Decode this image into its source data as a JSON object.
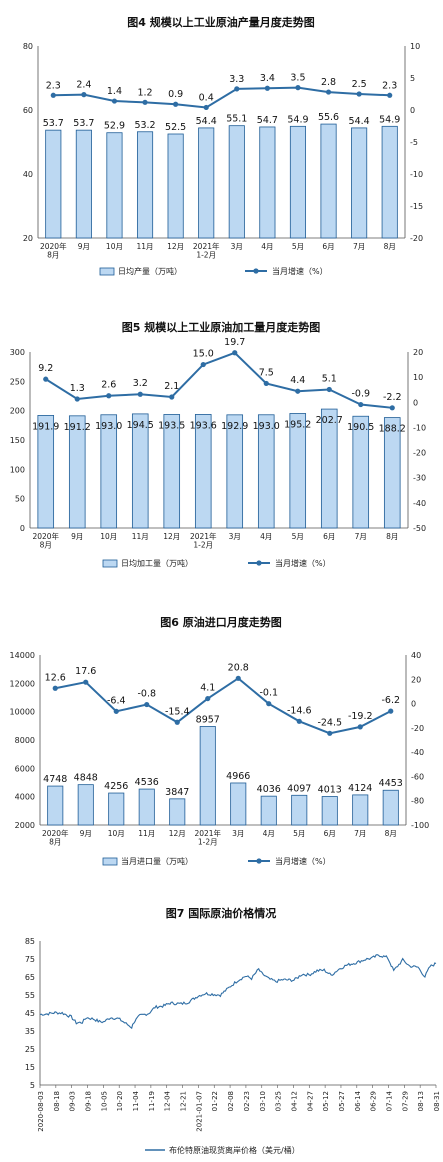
{
  "charts": [
    {
      "title": "图4  规模以上工业原油产量月度走势图",
      "categories": [
        "2020年\n8月",
        "9月",
        "10月",
        "11月",
        "12月",
        "2021年\n1-2月",
        "3月",
        "4月",
        "5月",
        "6月",
        "7月",
        "8月"
      ],
      "bar_legend": "日均产量（万吨）",
      "line_legend": "当月增速（%）"
    },
    {
      "title": "图5  规模以上工业原油加工量月度走势图",
      "categories": [
        "2020年\n8月",
        "9月",
        "10月",
        "11月",
        "12月",
        "2021年\n1-2月",
        "3月",
        "4月",
        "5月",
        "6月",
        "7月",
        "8月"
      ],
      "bar_legend": "日均加工量（万吨）",
      "line_legend": "当月增速（%）"
    },
    {
      "title": "图6  原油进口月度走势图",
      "categories": [
        "2020年\n8月",
        "9月",
        "10月",
        "11月",
        "12月",
        "2021年\n1-2月",
        "3月",
        "4月",
        "5月",
        "6月",
        "7月",
        "8月"
      ],
      "bar_legend": "当月进口量（万吨）",
      "line_legend": "当月增速（%）"
    },
    {
      "title": "图7  国际原油价格情况",
      "legend": "布伦特原油现货离岸价格（美元/桶）"
    }
  ],
  "colors": {
    "bar_fill": "#bcd8f2",
    "bar_stroke": "#1f5d96",
    "line": "#2e6da4",
    "axis_text": "#222222",
    "price_line": "#2e6da4"
  },
  "chart_data": [
    {
      "type": "bar",
      "categories": [
        "2020年\n8月",
        "9月",
        "10月",
        "11月",
        "12月",
        "2021年\n1-2月",
        "3月",
        "4月",
        "5月",
        "6月",
        "7月",
        "8月"
      ],
      "series": [
        {
          "name": "日均产量（万吨）",
          "type": "bar",
          "axis": "left",
          "values": [
            53.7,
            53.7,
            52.9,
            53.2,
            52.5,
            54.4,
            55.1,
            54.7,
            54.9,
            55.6,
            54.4,
            54.9
          ]
        },
        {
          "name": "当月增速（%）",
          "type": "line",
          "axis": "right",
          "values": [
            2.3,
            2.4,
            1.4,
            1.2,
            0.9,
            0.4,
            3.3,
            3.4,
            3.5,
            2.8,
            2.5,
            2.3
          ]
        }
      ],
      "left_axis": {
        "min": 20,
        "max": 80,
        "ticks": [
          20,
          40,
          60,
          80
        ]
      },
      "right_axis": {
        "min": -20,
        "max": 10,
        "ticks": [
          -20,
          -15,
          -10,
          -5,
          0,
          5,
          10
        ]
      }
    },
    {
      "type": "bar",
      "categories": [
        "2020年\n8月",
        "9月",
        "10月",
        "11月",
        "12月",
        "2021年\n1-2月",
        "3月",
        "4月",
        "5月",
        "6月",
        "7月",
        "8月"
      ],
      "series": [
        {
          "name": "日均加工量（万吨）",
          "type": "bar",
          "axis": "left",
          "values": [
            191.9,
            191.2,
            193.0,
            194.5,
            193.5,
            193.6,
            192.9,
            193.0,
            195.2,
            202.7,
            190.5,
            188.2
          ]
        },
        {
          "name": "当月增速（%）",
          "type": "line",
          "axis": "right",
          "values": [
            9.2,
            1.3,
            2.6,
            3.2,
            2.1,
            15.0,
            19.7,
            7.5,
            4.4,
            5.1,
            -0.9,
            -2.2
          ]
        }
      ],
      "left_axis": {
        "min": 0,
        "max": 300,
        "ticks": [
          0,
          50,
          100,
          150,
          200,
          250,
          300
        ]
      },
      "right_axis": {
        "min": -50,
        "max": 20,
        "ticks": [
          -50,
          -40,
          -30,
          -20,
          -10,
          0,
          10,
          20
        ]
      }
    },
    {
      "type": "bar",
      "categories": [
        "2020年\n8月",
        "9月",
        "10月",
        "11月",
        "12月",
        "2021年\n1-2月",
        "3月",
        "4月",
        "5月",
        "6月",
        "7月",
        "8月"
      ],
      "series": [
        {
          "name": "当月进口量（万吨）",
          "type": "bar",
          "axis": "left",
          "values": [
            4748,
            4848,
            4256,
            4536,
            3847,
            8957,
            4966,
            4036,
            4097,
            4013,
            4124,
            4453
          ]
        },
        {
          "name": "当月增速（%）",
          "type": "line",
          "axis": "right",
          "values": [
            12.6,
            17.6,
            -6.4,
            -0.8,
            -15.4,
            4.1,
            20.8,
            -0.1,
            -14.6,
            -24.5,
            -19.2,
            -6.2
          ]
        }
      ],
      "left_axis": {
        "min": 2000,
        "max": 14000,
        "ticks": [
          2000,
          4000,
          6000,
          8000,
          10000,
          12000,
          14000
        ]
      },
      "right_axis": {
        "min": -100,
        "max": 40,
        "ticks": [
          -100,
          -80,
          -60,
          -40,
          -20,
          0,
          20,
          40
        ]
      }
    },
    {
      "type": "line",
      "x_ticks": [
        "2020-08-03",
        "08-18",
        "09-03",
        "09-18",
        "10-05",
        "10-20",
        "11-04",
        "11-19",
        "12-04",
        "12-21",
        "2021-01-07",
        "01-22",
        "02-08",
        "02-23",
        "03-10",
        "03-25",
        "04-12",
        "04-27",
        "05-12",
        "05-27",
        "06-14",
        "06-29",
        "07-14",
        "07-29",
        "08-13",
        "08-31"
      ],
      "x_range": [
        "2020-08-03",
        "2021-08-31"
      ],
      "y_axis": {
        "min": 5,
        "max": 85,
        "ticks": [
          5,
          15,
          25,
          35,
          45,
          55,
          65,
          75,
          85
        ]
      },
      "series": [
        {
          "name": "布伦特原油现货离岸价格（美元/桶）",
          "points": [
            [
              "2020-08-03",
              44.2
            ],
            [
              "2020-08-10",
              44.5
            ],
            [
              "2020-08-18",
              45.2
            ],
            [
              "2020-08-25",
              45.0
            ],
            [
              "2020-09-03",
              42.8
            ],
            [
              "2020-09-08",
              39.5
            ],
            [
              "2020-09-14",
              39.8
            ],
            [
              "2020-09-18",
              42.5
            ],
            [
              "2020-09-25",
              41.7
            ],
            [
              "2020-10-01",
              40.2
            ],
            [
              "2020-10-05",
              40.0
            ],
            [
              "2020-10-12",
              42.5
            ],
            [
              "2020-10-20",
              41.8
            ],
            [
              "2020-10-26",
              39.6
            ],
            [
              "2020-11-02",
              37.0
            ],
            [
              "2020-11-04",
              39.8
            ],
            [
              "2020-11-10",
              43.5
            ],
            [
              "2020-11-19",
              44.8
            ],
            [
              "2020-11-25",
              48.2
            ],
            [
              "2020-12-04",
              49.0
            ],
            [
              "2020-12-10",
              50.5
            ],
            [
              "2020-12-21",
              50.1
            ],
            [
              "2020-12-28",
              51.0
            ],
            [
              "2021-01-07",
              54.5
            ],
            [
              "2021-01-14",
              55.8
            ],
            [
              "2021-01-22",
              55.4
            ],
            [
              "2021-01-29",
              55.0
            ],
            [
              "2021-02-08",
              59.8
            ],
            [
              "2021-02-15",
              63.0
            ],
            [
              "2021-02-23",
              65.5
            ],
            [
              "2021-03-01",
              64.2
            ],
            [
              "2021-03-08",
              69.3
            ],
            [
              "2021-03-10",
              67.5
            ],
            [
              "2021-03-18",
              64.0
            ],
            [
              "2021-03-25",
              62.5
            ],
            [
              "2021-04-01",
              63.5
            ],
            [
              "2021-04-12",
              63.2
            ],
            [
              "2021-04-20",
              66.5
            ],
            [
              "2021-04-27",
              66.2
            ],
            [
              "2021-05-05",
              68.5
            ],
            [
              "2021-05-12",
              68.8
            ],
            [
              "2021-05-19",
              66.0
            ],
            [
              "2021-05-27",
              69.5
            ],
            [
              "2021-06-03",
              71.5
            ],
            [
              "2021-06-14",
              73.2
            ],
            [
              "2021-06-22",
              74.8
            ],
            [
              "2021-06-29",
              75.6
            ],
            [
              "2021-07-05",
              77.2
            ],
            [
              "2021-07-14",
              75.8
            ],
            [
              "2021-07-20",
              68.5
            ],
            [
              "2021-07-29",
              74.5
            ],
            [
              "2021-08-05",
              71.0
            ],
            [
              "2021-08-13",
              70.5
            ],
            [
              "2021-08-20",
              65.2
            ],
            [
              "2021-08-25",
              70.8
            ],
            [
              "2021-08-31",
              72.5
            ]
          ]
        }
      ]
    }
  ]
}
